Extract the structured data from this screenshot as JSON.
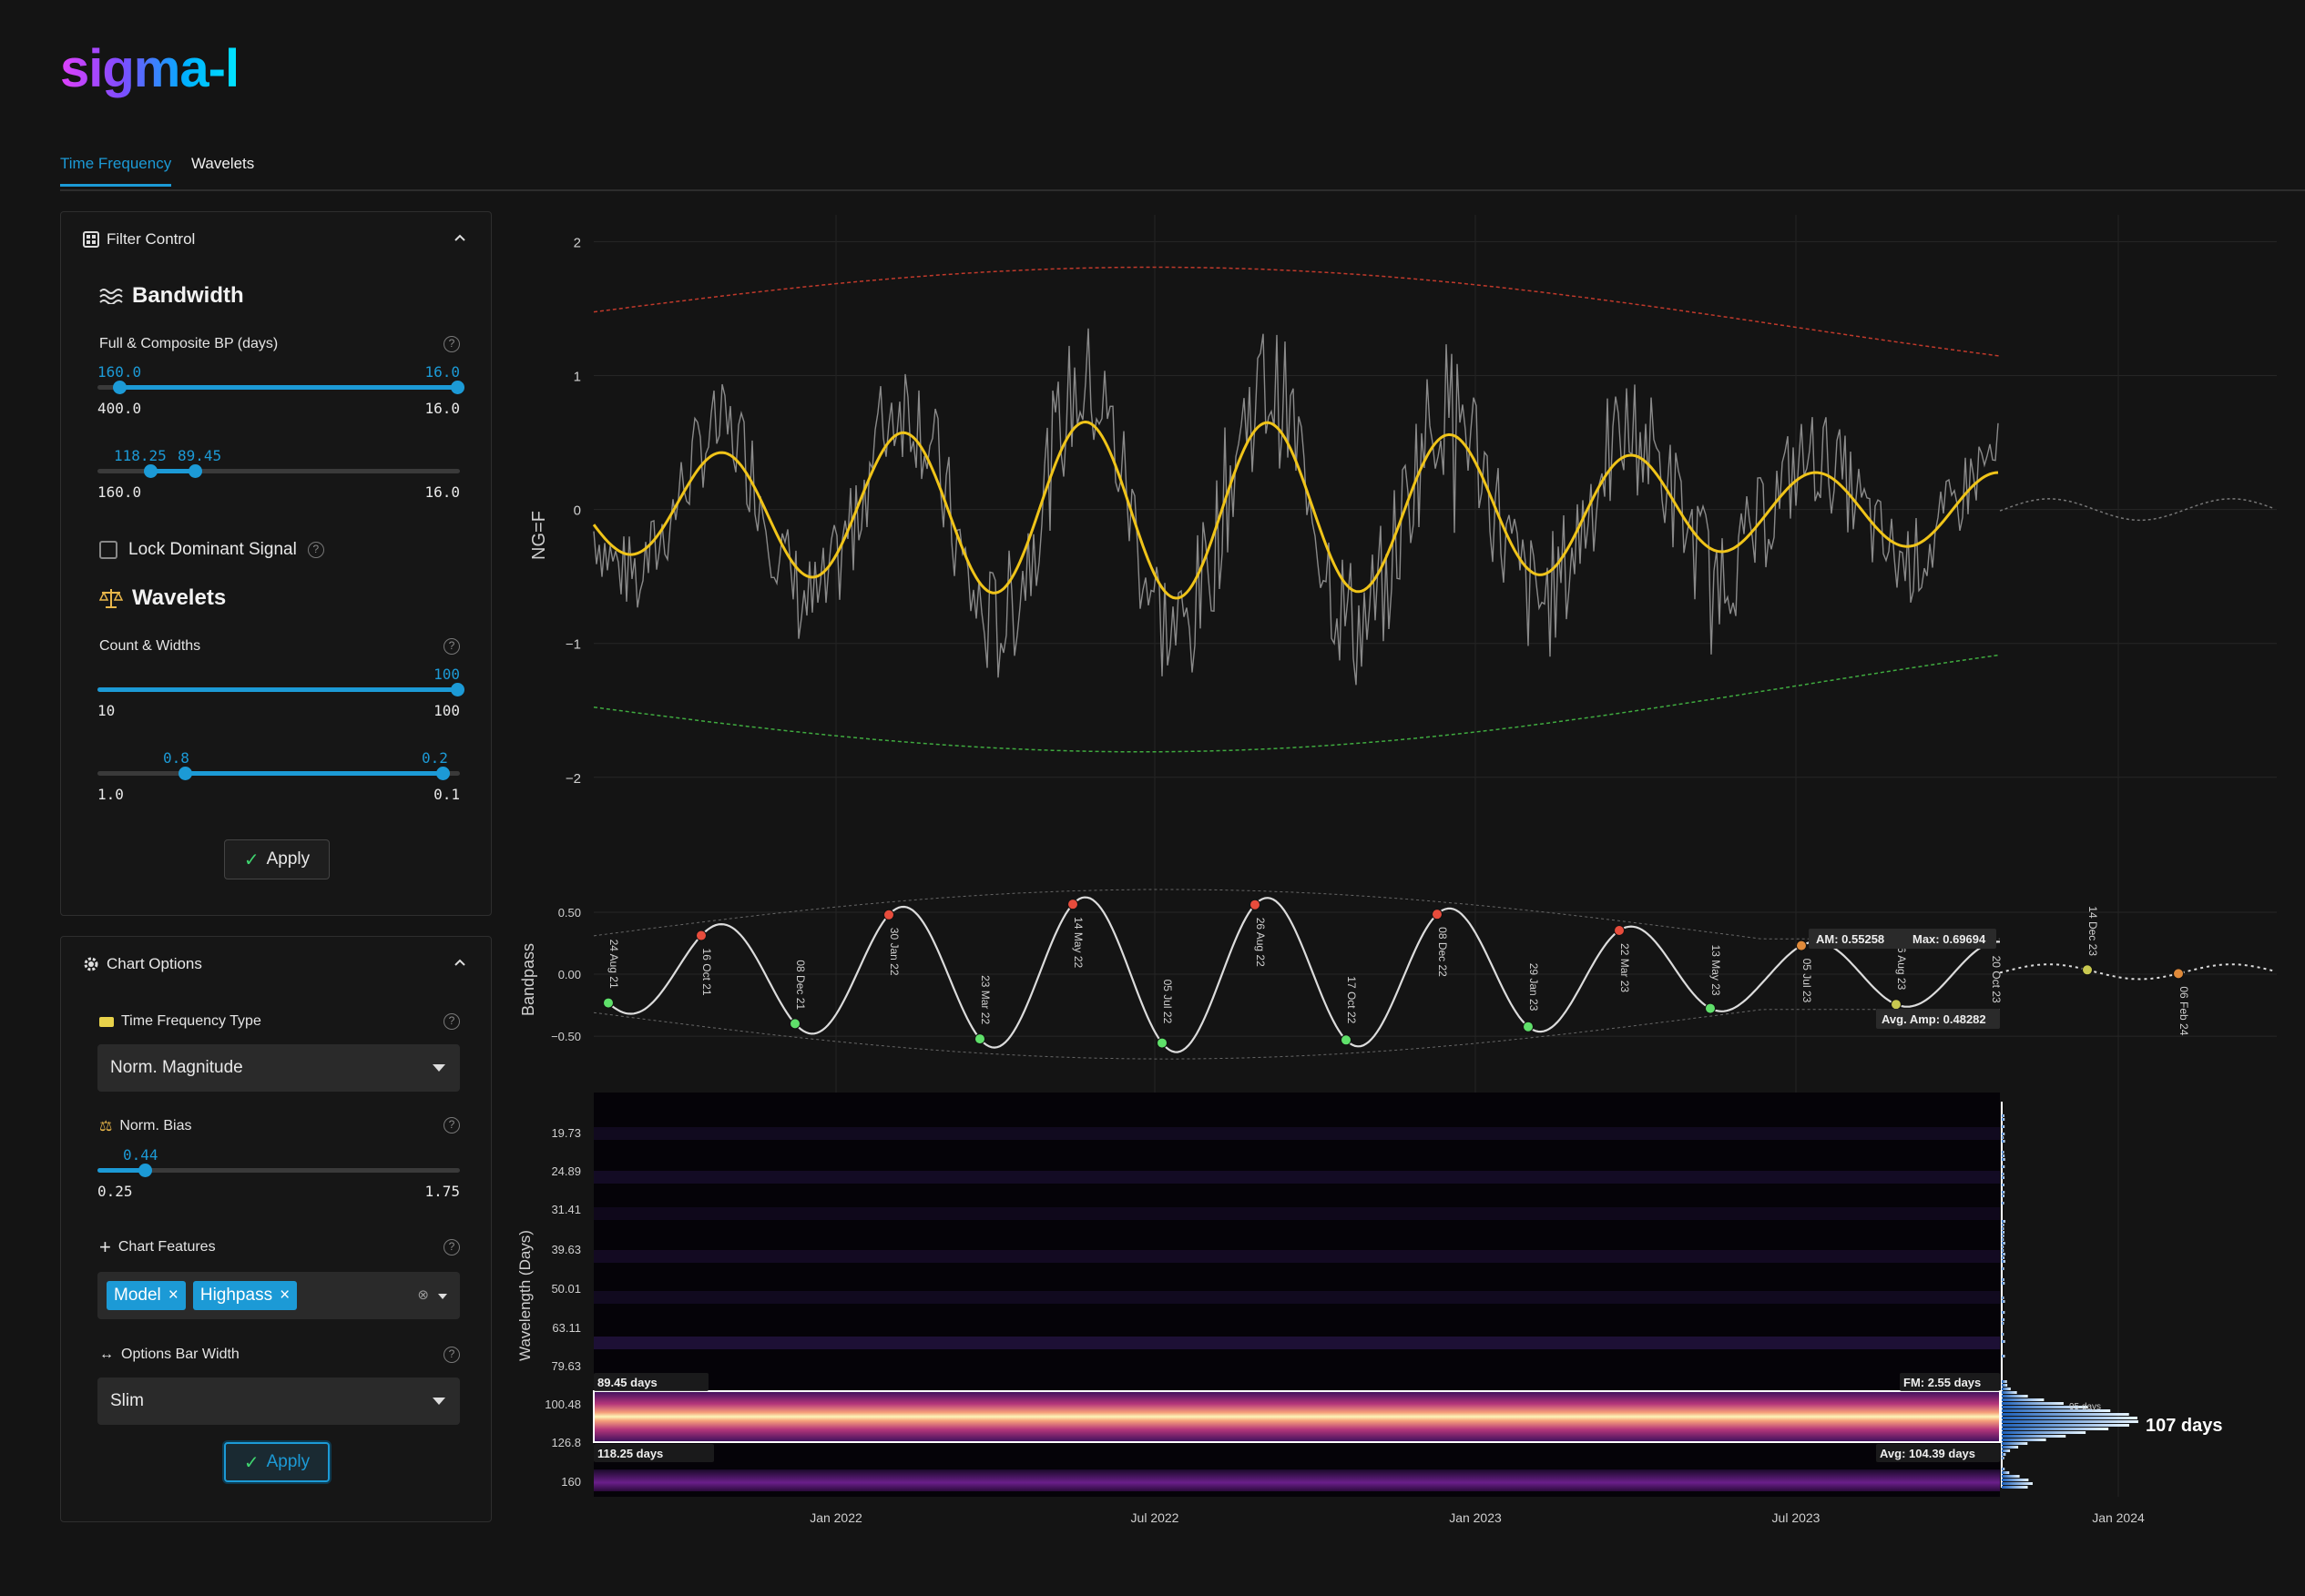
{
  "app": {
    "logo": "sigma-l"
  },
  "tabs": [
    {
      "label": "Time Frequency",
      "active": true
    },
    {
      "label": "Wavelets",
      "active": false
    }
  ],
  "filter_control": {
    "title": "Filter Control",
    "bandwidth": {
      "title": "Bandwidth",
      "label": "Full & Composite BP (days)",
      "full_bp": {
        "low_value": "160.0",
        "high_value": "16.0",
        "min": "400.0",
        "max": "16.0"
      },
      "composite_bp": {
        "low_value": "118.25",
        "high_value": "89.45",
        "min": "160.0",
        "max": "16.0"
      }
    },
    "lock_dominant_label": "Lock Dominant Signal",
    "wavelets": {
      "title": "Wavelets",
      "label": "Count & Widths",
      "count": {
        "value": "100",
        "min": "10",
        "max": "100"
      },
      "widths": {
        "low_value": "0.8",
        "high_value": "0.2",
        "min": "1.0",
        "max": "0.1"
      }
    },
    "apply_label": "Apply"
  },
  "chart_options": {
    "title": "Chart Options",
    "tf_type": {
      "label": "Time Frequency Type",
      "value": "Norm. Magnitude"
    },
    "norm_bias": {
      "label": "Norm. Bias",
      "value": "0.44",
      "min": "0.25",
      "max": "1.75"
    },
    "features": {
      "label": "Chart Features",
      "tags": [
        "Model",
        "Highpass"
      ]
    },
    "bar_width": {
      "label": "Options Bar Width",
      "value": "Slim"
    },
    "apply_label": "Apply"
  },
  "chart_data": [
    {
      "type": "line",
      "ylabel": "NG=F",
      "yticks": [
        "2",
        "1",
        "0",
        "−1",
        "−2"
      ],
      "ylim": [
        -2.45,
        2.2
      ],
      "x_ticks": [
        "Jan 2022",
        "Jul 2022",
        "Jan 2023",
        "Jul 2023",
        "Jan 2024"
      ],
      "series": [
        {
          "style": "yellow composite bandpass"
        },
        {
          "style": "grey price"
        }
      ]
    },
    {
      "type": "line",
      "ylabel": "Bandpass",
      "yticks": [
        "0.50",
        "0.00",
        "−0.50"
      ],
      "ylim": [
        -0.72,
        0.75
      ],
      "peak_labels": [
        "24 Aug 21",
        "16 Oct 21",
        "08 Dec 21",
        "30 Jan 22",
        "23 Mar 22",
        "14 May 22",
        "05 Jul 22",
        "26 Aug 22",
        "17 Oct 22",
        "08 Dec 22",
        "29 Jan 23",
        "22 Mar 23",
        "13 May 23",
        "05 Jul 23",
        "26 Aug 23",
        "20 Oct 23",
        "14 Dec 23",
        "06 Feb 24"
      ],
      "annotations": {
        "am": "AM: 0.55258",
        "max": "Max: 0.69694",
        "avg_amp": "Avg. Amp: 0.48282"
      }
    },
    {
      "type": "heatmap",
      "ylabel": "Wavelength (Days)",
      "yticks": [
        "19.73",
        "24.89",
        "31.41",
        "39.63",
        "50.01",
        "63.11",
        "79.63",
        "100.48",
        "126.8",
        "160"
      ],
      "band_labels": {
        "upper": "89.45 days",
        "lower": "118.25 days",
        "fm": "FM: 2.55 days",
        "avg": "Avg: 104.39 days",
        "peak_small": "95 days",
        "peak": "107 days"
      }
    }
  ]
}
